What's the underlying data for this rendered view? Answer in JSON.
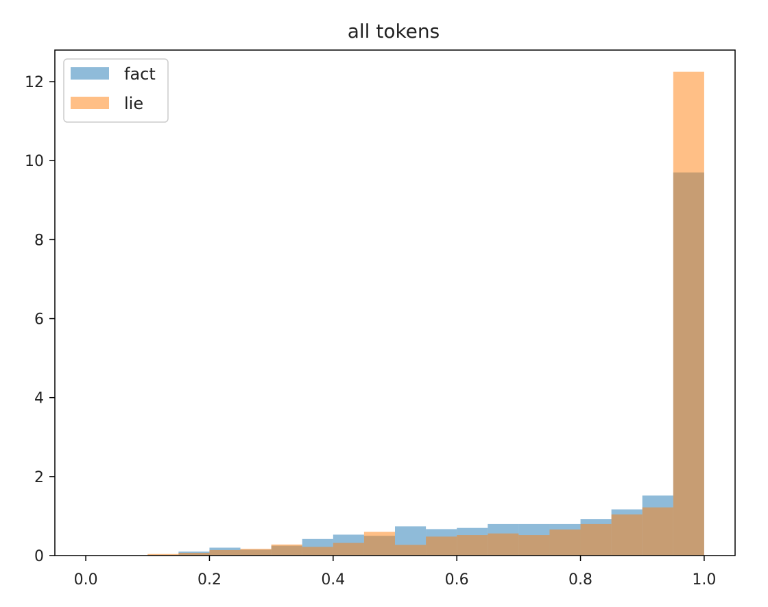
{
  "chart_data": {
    "type": "bar",
    "title": "all tokens",
    "xlabel": "",
    "ylabel": "",
    "xlim": [
      -0.05,
      1.05
    ],
    "ylim": [
      0,
      12.8
    ],
    "xticks": [
      0.0,
      0.2,
      0.4,
      0.6,
      0.8,
      1.0
    ],
    "xtick_labels": [
      "0.0",
      "0.2",
      "0.4",
      "0.6",
      "0.8",
      "1.0"
    ],
    "yticks": [
      0,
      2,
      4,
      6,
      8,
      10,
      12
    ],
    "ytick_labels": [
      "0",
      "2",
      "4",
      "6",
      "8",
      "10",
      "12"
    ],
    "legend_position": "top-left",
    "grid": false,
    "bin_edges": [
      0.0,
      0.05,
      0.1,
      0.15,
      0.2,
      0.25,
      0.3,
      0.35,
      0.4,
      0.45,
      0.5,
      0.55,
      0.6,
      0.65,
      0.7,
      0.75,
      0.8,
      0.85,
      0.9,
      0.95,
      1.0
    ],
    "series": [
      {
        "name": "fact",
        "color": "#1f77b4",
        "opacity": 0.5,
        "values": [
          0.0,
          0.0,
          0.02,
          0.1,
          0.2,
          0.15,
          0.25,
          0.42,
          0.53,
          0.5,
          0.74,
          0.67,
          0.7,
          0.8,
          0.8,
          0.8,
          0.92,
          1.17,
          1.52,
          9.7
        ]
      },
      {
        "name": "lie",
        "color": "#ff7f0e",
        "opacity": 0.5,
        "values": [
          0.0,
          0.0,
          0.04,
          0.07,
          0.14,
          0.17,
          0.28,
          0.22,
          0.32,
          0.6,
          0.27,
          0.48,
          0.52,
          0.56,
          0.52,
          0.66,
          0.8,
          1.04,
          1.22,
          12.25
        ]
      }
    ]
  }
}
